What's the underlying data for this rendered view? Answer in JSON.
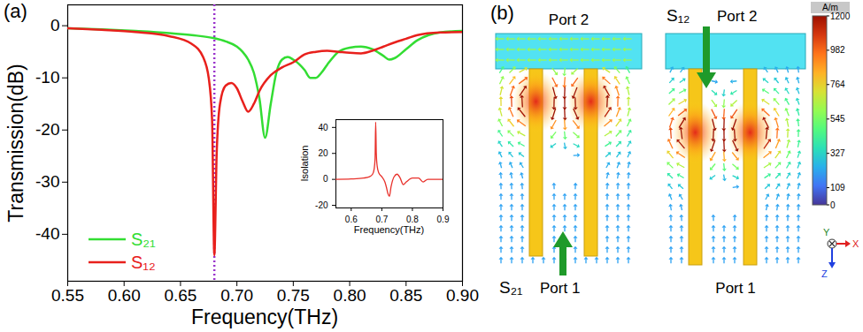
{
  "chart_data": [
    {
      "type": "line",
      "panel_label": "(a)",
      "xlabel": "Frequency(THz)",
      "ylabel": "Transmission(dB)",
      "xlim": [
        0.55,
        0.9
      ],
      "xticks": [
        0.55,
        {
          "value": 0.6,
          "label": "0.60"
        },
        0.65,
        {
          "value": 0.7,
          "label": "0.70"
        },
        0.75,
        {
          "value": 0.8,
          "label": "0.80"
        },
        0.85,
        {
          "value": 0.9,
          "label": "0.90"
        }
      ],
      "ylim": [
        -49,
        4
      ],
      "yticks": [
        -40,
        -30,
        -20,
        -10,
        0
      ],
      "legend": "lower left",
      "series": [
        {
          "name": "S₂₁",
          "color": "#33dd33",
          "x": [
            0.55,
            0.58,
            0.61,
            0.64,
            0.66,
            0.68,
            0.69,
            0.7,
            0.705,
            0.71,
            0.715,
            0.72,
            0.725,
            0.73,
            0.735,
            0.74,
            0.745,
            0.75,
            0.76,
            0.765,
            0.77,
            0.775,
            0.78,
            0.79,
            0.8,
            0.81,
            0.82,
            0.83,
            0.835,
            0.84,
            0.85,
            0.86,
            0.87,
            0.88,
            0.9
          ],
          "values": [
            -0.5,
            -0.7,
            -1.0,
            -1.4,
            -1.8,
            -2.4,
            -3.0,
            -4.0,
            -5.0,
            -6.5,
            -9.0,
            -14.0,
            -21.5,
            -15.0,
            -9.0,
            -6.5,
            -6.0,
            -6.5,
            -8.5,
            -10.0,
            -10.0,
            -9.0,
            -7.5,
            -5.0,
            -4.2,
            -4.0,
            -4.5,
            -5.8,
            -6.5,
            -6.2,
            -4.5,
            -2.8,
            -1.8,
            -1.3,
            -1.0
          ]
        },
        {
          "name": "S₁₂",
          "color": "#e8201c",
          "x": [
            0.55,
            0.58,
            0.61,
            0.64,
            0.66,
            0.67,
            0.675,
            0.678,
            0.68,
            0.682,
            0.685,
            0.69,
            0.695,
            0.7,
            0.705,
            0.71,
            0.715,
            0.72,
            0.73,
            0.74,
            0.75,
            0.76,
            0.77,
            0.78,
            0.79,
            0.8,
            0.81,
            0.82,
            0.83,
            0.84,
            0.85,
            0.86,
            0.88,
            0.9
          ],
          "values": [
            -0.5,
            -0.8,
            -1.2,
            -2.0,
            -3.5,
            -6.0,
            -10.0,
            -18.0,
            -44.0,
            -25.0,
            -15.0,
            -11.5,
            -11.0,
            -12.0,
            -14.5,
            -16.5,
            -15.0,
            -12.5,
            -9.5,
            -8.0,
            -7.0,
            -5.5,
            -5.0,
            -4.8,
            -5.0,
            -5.2,
            -5.3,
            -4.8,
            -4.0,
            -3.2,
            -2.5,
            -1.8,
            -1.3,
            -1.2
          ]
        }
      ],
      "vlines": [
        {
          "x": 0.68,
          "color": "#9933cc",
          "line_style": "dotted"
        }
      ]
    },
    {
      "type": "line",
      "xlabel": "Frequency(THz)",
      "ylabel": "Isolation",
      "xlim": [
        0.55,
        0.9
      ],
      "xticks": [
        0.6,
        0.7,
        0.8,
        0.9
      ],
      "ylim": [
        -22,
        46
      ],
      "yticks": [
        -20,
        0,
        20,
        40
      ],
      "series": [
        {
          "color": "#e8302a",
          "x": [
            0.55,
            0.6,
            0.64,
            0.66,
            0.67,
            0.675,
            0.678,
            0.68,
            0.682,
            0.685,
            0.69,
            0.7,
            0.71,
            0.715,
            0.72,
            0.725,
            0.73,
            0.74,
            0.75,
            0.76,
            0.77,
            0.78,
            0.8,
            0.82,
            0.835,
            0.85,
            0.87,
            0.9
          ],
          "values": [
            0,
            0.3,
            1,
            2,
            4,
            8,
            16,
            44,
            20,
            10,
            5,
            2,
            -2,
            -6,
            -11,
            -13,
            -6,
            2,
            4,
            1,
            -4,
            -2,
            1,
            1,
            -2,
            0,
            0,
            0
          ]
        }
      ]
    }
  ],
  "diagram": {
    "panel_label": "(b)",
    "panels": [
      {
        "signal": "S₂₁",
        "top_port": "Port 2",
        "bottom_port": "Port 1",
        "direction": "up"
      },
      {
        "signal": "S₁₂",
        "top_port": "Port 2",
        "bottom_port": "Port 1",
        "direction": "down"
      }
    ],
    "colorbar": {
      "title": "A/m",
      "range": [
        0,
        1200
      ],
      "ticks": [
        1200,
        982,
        764,
        545,
        327,
        109,
        0
      ]
    },
    "axes": {
      "x": "X",
      "y": "Y",
      "z": "Z"
    }
  }
}
